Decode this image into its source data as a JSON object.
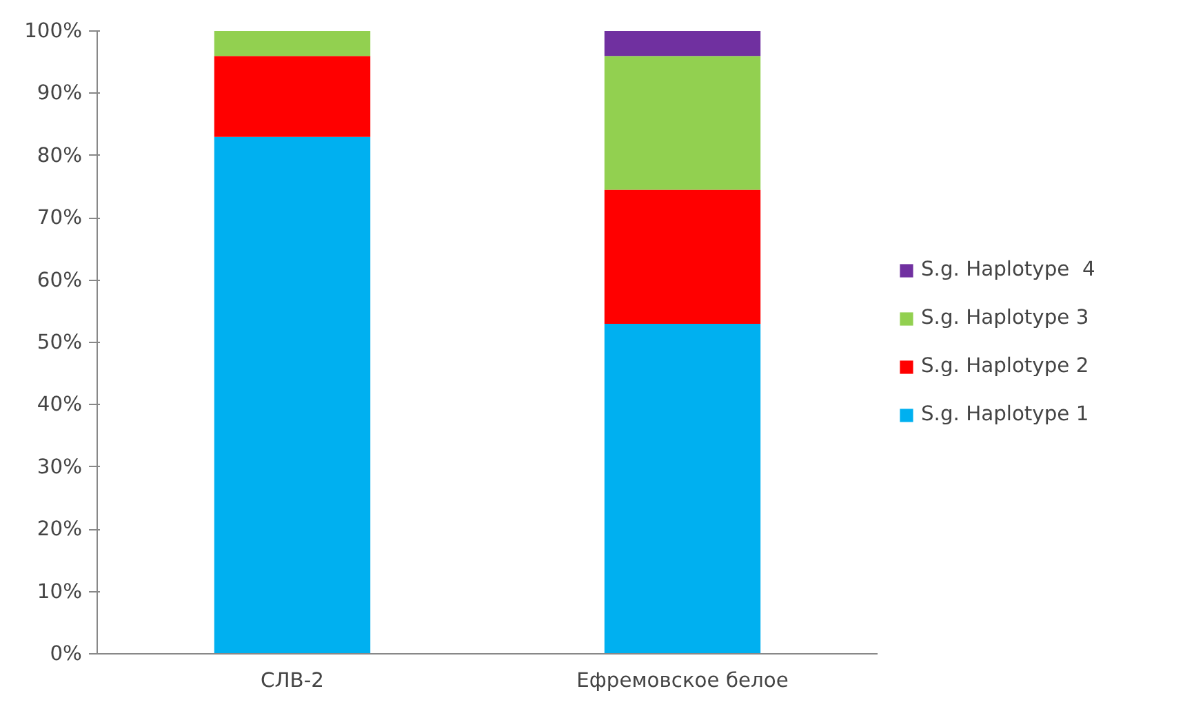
{
  "chart_data": {
    "type": "bar",
    "stacked": true,
    "categories": [
      "СЛВ-2",
      "Ефремовское белое"
    ],
    "series": [
      {
        "name": "S.g. Haplotype 1",
        "color": "#00b0f0",
        "values": [
          83,
          53
        ]
      },
      {
        "name": "S.g. Haplotype 2",
        "color": "#ff0000",
        "values": [
          13,
          21.5
        ]
      },
      {
        "name": "S.g. Haplotype 3",
        "color": "#92d050",
        "values": [
          4,
          21.5
        ]
      },
      {
        "name": "S.g. Haplotype  4",
        "color": "#7030a0",
        "values": [
          0,
          4
        ]
      }
    ],
    "ylim": [
      0,
      100
    ],
    "yticks": [
      {
        "value": 0,
        "label": "0%"
      },
      {
        "value": 10,
        "label": "10%"
      },
      {
        "value": 20,
        "label": "20%"
      },
      {
        "value": 30,
        "label": "30%"
      },
      {
        "value": 40,
        "label": "40%"
      },
      {
        "value": 50,
        "label": "50%"
      },
      {
        "value": 60,
        "label": "60%"
      },
      {
        "value": 70,
        "label": "70%"
      },
      {
        "value": 80,
        "label": "80%"
      },
      {
        "value": 90,
        "label": "90%"
      },
      {
        "value": 100,
        "label": "100%"
      }
    ],
    "grid": false,
    "legend": "right"
  }
}
